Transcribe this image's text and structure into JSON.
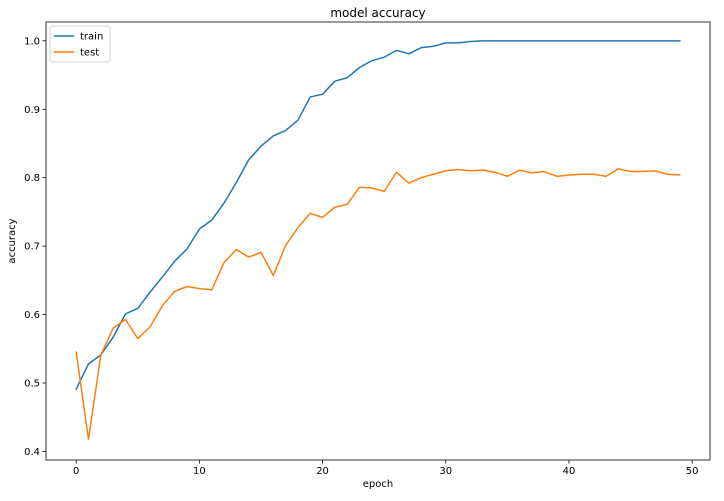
{
  "chart_data": {
    "type": "line",
    "title": "model accuracy",
    "xlabel": "epoch",
    "ylabel": "accuracy",
    "xlim": [
      -2.45,
      51.45
    ],
    "ylim": [
      0.3875,
      1.0275
    ],
    "xticks": [
      0,
      10,
      20,
      30,
      40,
      50
    ],
    "yticks": [
      0.4,
      0.5,
      0.6,
      0.7,
      0.8,
      0.9,
      1.0
    ],
    "ytick_labels": [
      "0.4",
      "0.5",
      "0.6",
      "0.7",
      "0.8",
      "0.9",
      "1.0"
    ],
    "grid": false,
    "legend_position": "top-left",
    "x": [
      0,
      1,
      2,
      3,
      4,
      5,
      6,
      7,
      8,
      9,
      10,
      11,
      12,
      13,
      14,
      15,
      16,
      17,
      18,
      19,
      20,
      21,
      22,
      23,
      24,
      25,
      26,
      27,
      28,
      29,
      30,
      31,
      32,
      33,
      34,
      35,
      36,
      37,
      38,
      39,
      40,
      41,
      42,
      43,
      44,
      45,
      46,
      47,
      48,
      49
    ],
    "series": [
      {
        "name": "train",
        "color": "#1f77b4",
        "values": [
          0.491,
          0.528,
          0.541,
          0.567,
          0.601,
          0.609,
          0.633,
          0.655,
          0.678,
          0.696,
          0.725,
          0.738,
          0.763,
          0.793,
          0.826,
          0.846,
          0.861,
          0.869,
          0.884,
          0.918,
          0.922,
          0.941,
          0.946,
          0.961,
          0.971,
          0.976,
          0.986,
          0.981,
          0.99,
          0.992,
          0.997,
          0.997,
          0.999,
          1.0,
          1.0,
          1.0,
          1.0,
          1.0,
          1.0,
          1.0,
          1.0,
          1.0,
          1.0,
          1.0,
          1.0,
          1.0,
          1.0,
          1.0,
          1.0,
          1.0
        ]
      },
      {
        "name": "test",
        "color": "#ff7f0e",
        "values": [
          0.545,
          0.418,
          0.541,
          0.58,
          0.593,
          0.565,
          0.582,
          0.613,
          0.634,
          0.641,
          0.638,
          0.636,
          0.676,
          0.695,
          0.684,
          0.691,
          0.657,
          0.701,
          0.727,
          0.748,
          0.742,
          0.757,
          0.761,
          0.786,
          0.785,
          0.78,
          0.808,
          0.792,
          0.8,
          0.805,
          0.81,
          0.812,
          0.81,
          0.811,
          0.808,
          0.802,
          0.811,
          0.807,
          0.809,
          0.802,
          0.804,
          0.805,
          0.805,
          0.802,
          0.813,
          0.809,
          0.809,
          0.81,
          0.805,
          0.804
        ]
      }
    ]
  }
}
